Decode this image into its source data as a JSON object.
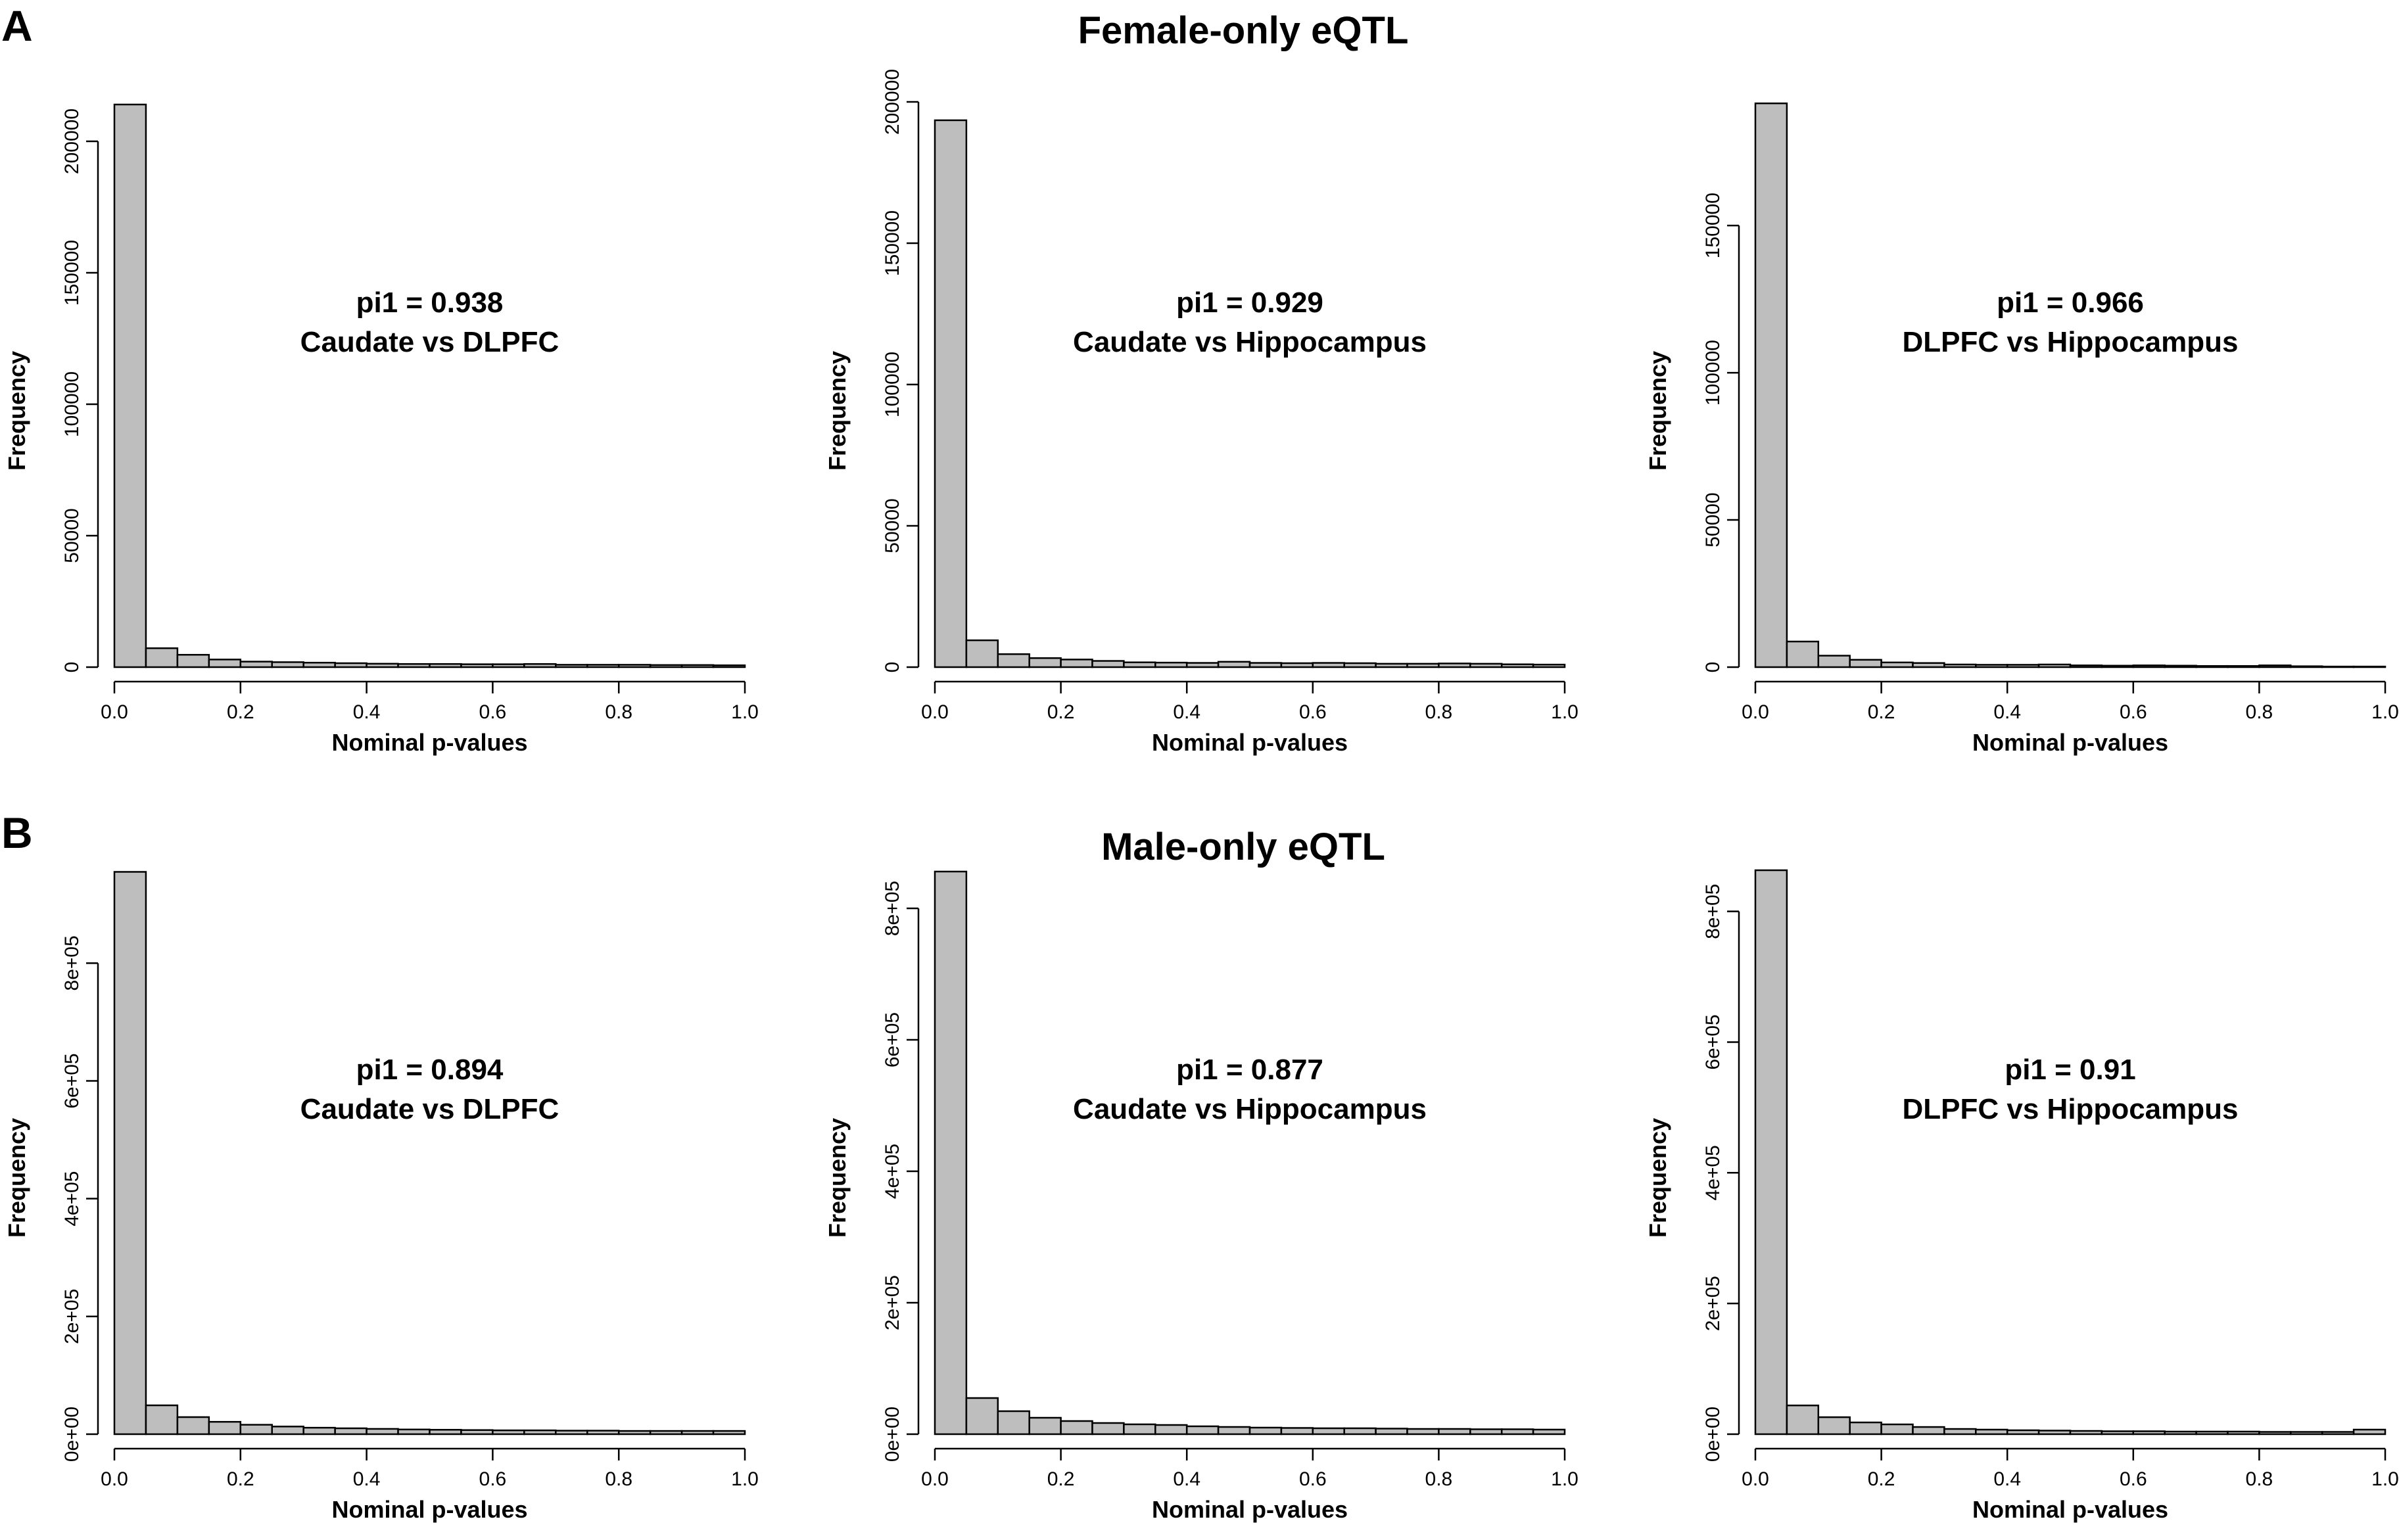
{
  "figure": {
    "panel_A": {
      "letter": "A",
      "title": "Female-only eQTL"
    },
    "panel_B": {
      "letter": "B",
      "title": "Male-only eQTL"
    }
  },
  "chart_data": [
    {
      "type": "bar",
      "panel": "A",
      "annotation": [
        "pi1 = 0.938",
        "Caudate vs DLPFC"
      ],
      "xlabel": "Nominal p-values",
      "ylabel": "Frequency",
      "xlim": [
        0,
        1
      ],
      "xticks": [
        "0.0",
        "0.2",
        "0.4",
        "0.6",
        "0.8",
        "1.0"
      ],
      "ylim": [
        0,
        215000
      ],
      "yticks": [
        0,
        50000,
        100000,
        150000,
        200000
      ],
      "ytick_labels": [
        "0",
        "50000",
        "100000",
        "150000",
        "200000"
      ],
      "bin_width": 0.05,
      "values": [
        214000,
        7200,
        4700,
        2900,
        2100,
        1900,
        1700,
        1500,
        1300,
        1200,
        1200,
        1100,
        1100,
        1200,
        900,
        900,
        900,
        800,
        800,
        700
      ]
    },
    {
      "type": "bar",
      "panel": "A",
      "annotation": [
        "pi1 = 0.929",
        "Caudate vs Hippocampus"
      ],
      "xlabel": "Nominal p-values",
      "ylabel": "Frequency",
      "xlim": [
        0,
        1
      ],
      "xticks": [
        "0.0",
        "0.2",
        "0.4",
        "0.6",
        "0.8",
        "1.0"
      ],
      "ylim": [
        0,
        200000
      ],
      "yticks": [
        0,
        50000,
        100000,
        150000,
        200000
      ],
      "ytick_labels": [
        "0",
        "50000",
        "100000",
        "150000",
        "200000"
      ],
      "bin_width": 0.05,
      "values": [
        193500,
        9500,
        4600,
        3200,
        2700,
        2200,
        1700,
        1600,
        1500,
        1900,
        1500,
        1400,
        1500,
        1400,
        1200,
        1200,
        1300,
        1200,
        1000,
        900
      ]
    },
    {
      "type": "bar",
      "panel": "A",
      "annotation": [
        "pi1 = 0.966",
        "DLPFC vs Hippocampus"
      ],
      "xlabel": "Nominal p-values",
      "ylabel": "Frequency",
      "xlim": [
        0,
        1
      ],
      "xticks": [
        "0.0",
        "0.2",
        "0.4",
        "0.6",
        "0.8",
        "1.0"
      ],
      "ylim": [
        0,
        192000
      ],
      "yticks": [
        0,
        50000,
        100000,
        150000
      ],
      "ytick_labels": [
        "0",
        "50000",
        "100000",
        "150000"
      ],
      "bin_width": 0.05,
      "values": [
        191500,
        8700,
        3900,
        2500,
        1600,
        1400,
        900,
        800,
        800,
        900,
        600,
        500,
        600,
        500,
        400,
        400,
        600,
        300,
        200,
        200
      ]
    },
    {
      "type": "bar",
      "panel": "B",
      "annotation": [
        "pi1 = 0.894",
        "Caudate vs DLPFC"
      ],
      "xlabel": "Nominal p-values",
      "ylabel": "Frequency",
      "xlim": [
        0,
        1
      ],
      "xticks": [
        "0.0",
        "0.2",
        "0.4",
        "0.6",
        "0.8",
        "1.0"
      ],
      "ylim": [
        0,
        960000
      ],
      "yticks": [
        0,
        200000,
        400000,
        600000,
        800000
      ],
      "ytick_labels": [
        "0e+00",
        "2e+05",
        "4e+05",
        "6e+05",
        "8e+05"
      ],
      "bin_width": 0.05,
      "values": [
        955000,
        49000,
        29000,
        21000,
        16000,
        13000,
        11000,
        10000,
        9000,
        8000,
        7500,
        7000,
        6500,
        6500,
        6000,
        6000,
        5500,
        5500,
        5500,
        5500
      ]
    },
    {
      "type": "bar",
      "panel": "B",
      "annotation": [
        "pi1 = 0.877",
        "Caudate vs Hippocampus"
      ],
      "xlabel": "Nominal p-values",
      "ylabel": "Frequency",
      "xlim": [
        0,
        1
      ],
      "xticks": [
        "0.0",
        "0.2",
        "0.4",
        "0.6",
        "0.8",
        "1.0"
      ],
      "ylim": [
        0,
        860000
      ],
      "yticks": [
        0,
        200000,
        400000,
        600000,
        800000
      ],
      "ytick_labels": [
        "0e+00",
        "2e+05",
        "4e+05",
        "6e+05",
        "8e+05"
      ],
      "bin_width": 0.05,
      "values": [
        856000,
        55000,
        35000,
        25000,
        20000,
        17000,
        15000,
        14000,
        12000,
        11000,
        10000,
        9500,
        9000,
        9000,
        8500,
        8000,
        8000,
        7500,
        7500,
        7000
      ]
    },
    {
      "type": "bar",
      "panel": "B",
      "annotation": [
        "pi1 = 0.91",
        "DLPFC vs Hippocampus"
      ],
      "xlabel": "Nominal p-values",
      "ylabel": "Frequency",
      "xlim": [
        0,
        1
      ],
      "xticks": [
        "0.0",
        "0.2",
        "0.4",
        "0.6",
        "0.8",
        "1.0"
      ],
      "ylim": [
        0,
        865000
      ],
      "yticks": [
        0,
        200000,
        400000,
        600000,
        800000
      ],
      "ytick_labels": [
        "0e+00",
        "2e+05",
        "4e+05",
        "6e+05",
        "8e+05"
      ],
      "bin_width": 0.05,
      "values": [
        863000,
        44000,
        26000,
        18000,
        15000,
        11000,
        8000,
        7000,
        6000,
        5500,
        5000,
        4500,
        4500,
        4000,
        4000,
        4000,
        3500,
        3500,
        3500,
        7000
      ]
    }
  ]
}
